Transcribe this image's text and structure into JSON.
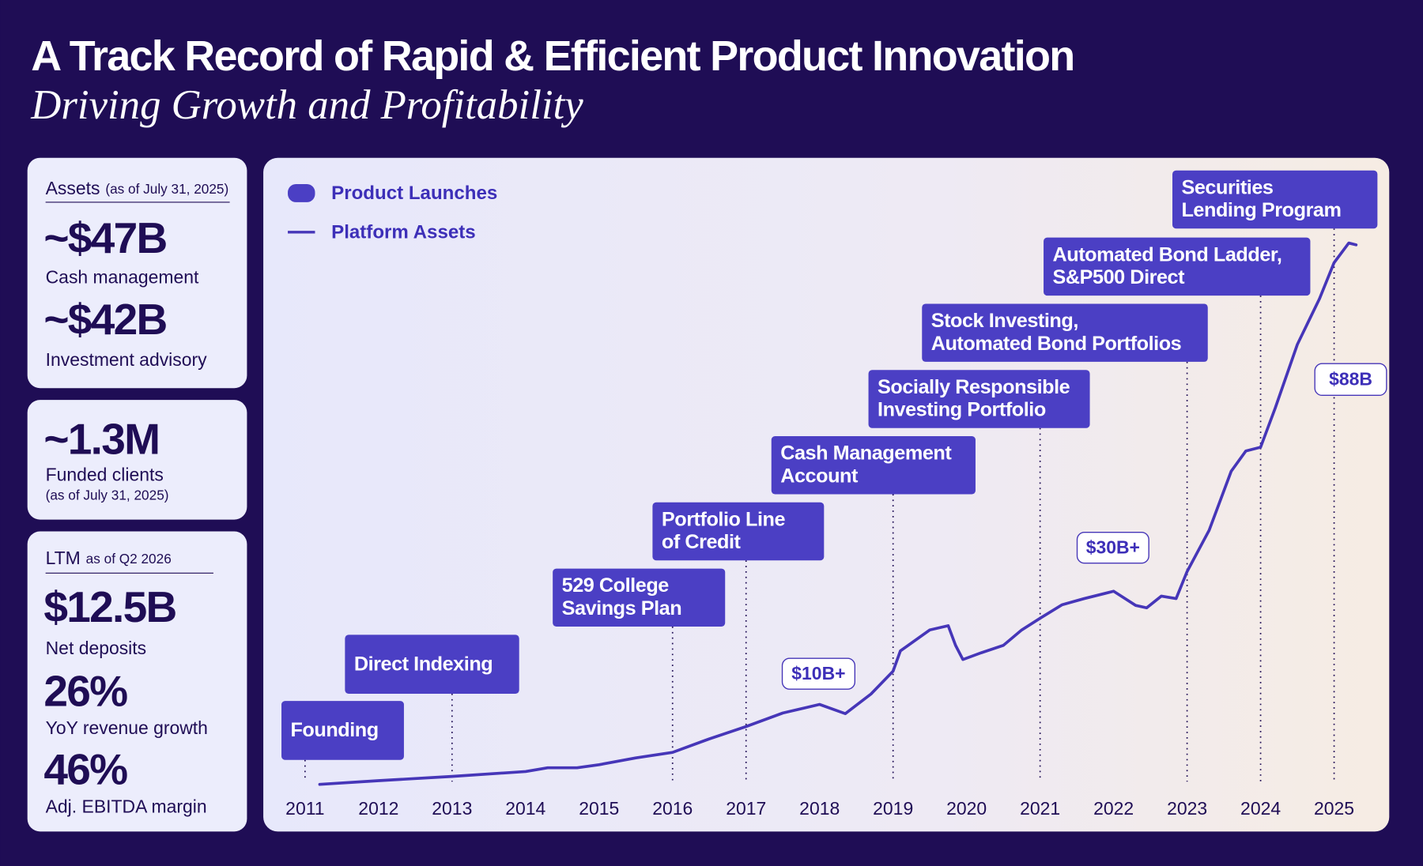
{
  "header": {
    "title": "A Track Record of Rapid & Efficient Product Innovation",
    "subtitle": "Driving Growth and Profitability"
  },
  "assets_card": {
    "heading": "Assets",
    "note": "(as of July 31, 2025)",
    "items": [
      {
        "value": "~$47B",
        "label": "Cash management"
      },
      {
        "value": "~$42B",
        "label": "Investment advisory"
      }
    ]
  },
  "clients_card": {
    "value": "~1.3M",
    "label": "Funded clients",
    "note": "(as of July 31, 2025)"
  },
  "ltm_card": {
    "heading": "LTM",
    "note": "as of Q2 2026",
    "items": [
      {
        "value": "$12.5B",
        "label": "Net deposits"
      },
      {
        "value": "26%",
        "label": "YoY revenue growth"
      },
      {
        "value": "46%",
        "label": "Adj. EBITDA margin"
      }
    ]
  },
  "chart_data": {
    "type": "line",
    "xlim": [
      2010.7,
      2025.75
    ],
    "ylim": [
      0,
      88
    ],
    "xticks": [
      2011,
      2012,
      2013,
      2014,
      2015,
      2016,
      2017,
      2018,
      2019,
      2020,
      2021,
      2022,
      2023,
      2024,
      2025
    ],
    "x": [
      2011.2,
      2012,
      2013,
      2014,
      2014.3,
      2014.7,
      2015,
      2015.5,
      2016,
      2016.5,
      2017,
      2017.5,
      2018,
      2018.35,
      2018.7,
      2019,
      2019.1,
      2019.5,
      2019.75,
      2019.85,
      2019.95,
      2020.2,
      2020.5,
      2020.75,
      2021,
      2021.3,
      2021.6,
      2022,
      2022.3,
      2022.45,
      2022.65,
      2022.85,
      2023,
      2023.3,
      2023.6,
      2023.8,
      2024,
      2024.2,
      2024.5,
      2024.8,
      2025,
      2025.2,
      2025.3
    ],
    "series": [
      {
        "name": "Platform Assets",
        "color": "#4636b8",
        "values": [
          0,
          0.6,
          1.3,
          2.1,
          2.7,
          2.7,
          3.2,
          4.3,
          5.2,
          7.4,
          9.4,
          11.6,
          13,
          11.5,
          14.7,
          18.4,
          21.7,
          25.1,
          25.8,
          22.6,
          20.3,
          21.4,
          22.6,
          25.1,
          27,
          29.2,
          30.2,
          31.4,
          29.1,
          28.7,
          30.6,
          30.2,
          34.6,
          41.3,
          50.9,
          54.2,
          54.8,
          61.2,
          71.5,
          78.9,
          84.8,
          88,
          87.7
        ]
      }
    ],
    "launches": {
      "name": "Product Launches",
      "color": "#4b3fc4",
      "items": [
        {
          "x": 2011,
          "lines": [
            "Founding"
          ]
        },
        {
          "x": 2013,
          "lines": [
            "Direct Indexing"
          ]
        },
        {
          "x": 2016,
          "lines": [
            "529 College",
            "Savings Plan"
          ]
        },
        {
          "x": 2017,
          "lines": [
            "Portfolio Line",
            "of Credit"
          ]
        },
        {
          "x": 2019,
          "lines": [
            "Cash Management",
            "Account"
          ]
        },
        {
          "x": 2021,
          "lines": [
            "Socially Responsible",
            "Investing Portfolio"
          ]
        },
        {
          "x": 2023,
          "lines": [
            "Stock Investing,",
            "Automated Bond Portfolios"
          ]
        },
        {
          "x": 2024,
          "lines": [
            "Automated Bond Ladder,",
            "S&P500 Direct"
          ]
        },
        {
          "x": 2025,
          "lines": [
            "Securities",
            "Lending Program"
          ]
        }
      ]
    },
    "callouts": [
      {
        "x": 2018,
        "value": 10,
        "label": "$10B+"
      },
      {
        "x": 2022,
        "value": 30,
        "label": "$30B+"
      },
      {
        "x": 2025,
        "value": 88,
        "label": "$88B"
      }
    ]
  }
}
